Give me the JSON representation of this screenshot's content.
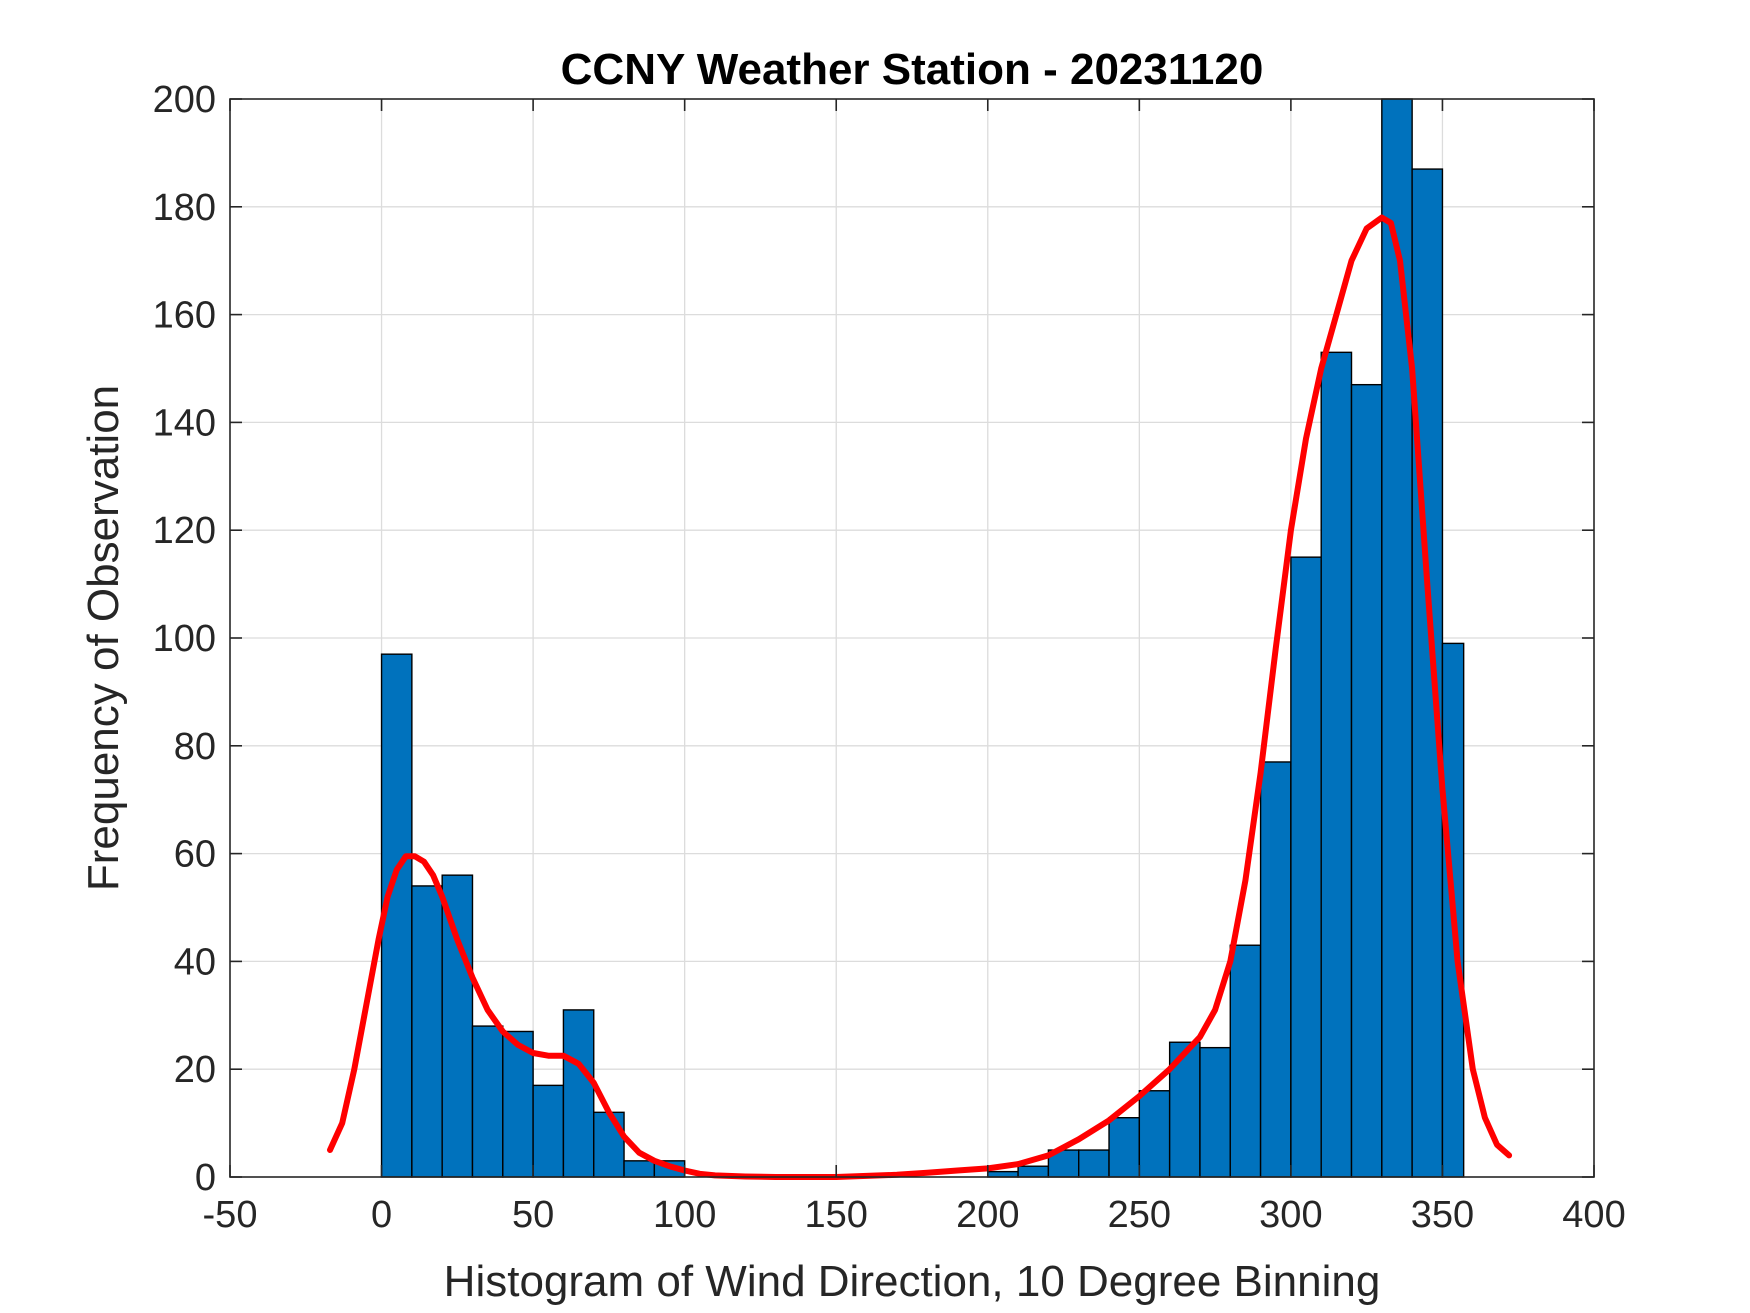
{
  "chart_data": {
    "type": "bar",
    "subtype": "histogram-with-density-curve",
    "title": "CCNY Weather Station - 20231120",
    "xlabel": "Histogram of Wind Direction, 10 Degree Binning",
    "ylabel": "Frequency of Observation",
    "xlim": [
      -50,
      400
    ],
    "ylim": [
      0,
      200
    ],
    "xticks": [
      -50,
      0,
      50,
      100,
      150,
      200,
      250,
      300,
      350,
      400
    ],
    "xtick_labels": [
      "-50",
      "0",
      "50",
      "100",
      "150",
      "200",
      "250",
      "300",
      "350",
      "400"
    ],
    "yticks": [
      0,
      20,
      40,
      60,
      80,
      100,
      120,
      140,
      160,
      180,
      200
    ],
    "ytick_labels": [
      "0",
      "20",
      "40",
      "60",
      "80",
      "100",
      "120",
      "140",
      "160",
      "180",
      "200"
    ],
    "grid": true,
    "bin_edges": [
      0,
      10,
      20,
      30,
      40,
      50,
      60,
      70,
      80,
      90,
      100,
      110,
      120,
      130,
      140,
      150,
      160,
      170,
      180,
      190,
      200,
      210,
      220,
      230,
      240,
      250,
      260,
      270,
      280,
      290,
      300,
      310,
      320,
      330,
      340,
      350,
      357
    ],
    "counts": [
      97,
      54,
      56,
      28,
      27,
      17,
      31,
      12,
      3,
      3,
      0,
      0,
      0,
      0,
      0,
      0,
      0,
      0,
      0,
      0,
      1,
      2,
      5,
      5,
      11,
      16,
      25,
      24,
      43,
      77,
      115,
      153,
      147,
      200,
      187,
      99
    ],
    "bar_color": "#0072BD",
    "curve": {
      "color": "#FF0000",
      "x": [
        -17,
        -13,
        -9,
        -5,
        -1,
        2,
        5,
        8,
        11,
        14,
        17,
        20,
        25,
        30,
        35,
        40,
        45,
        50,
        55,
        60,
        65,
        70,
        75,
        80,
        85,
        90,
        95,
        100,
        105,
        110,
        120,
        130,
        140,
        150,
        160,
        170,
        180,
        190,
        200,
        210,
        220,
        230,
        240,
        250,
        260,
        270,
        275,
        280,
        285,
        290,
        295,
        300,
        305,
        310,
        315,
        320,
        325,
        330,
        333,
        336,
        340,
        345,
        350,
        355,
        360,
        364,
        368,
        372
      ],
      "y": [
        5,
        10,
        20,
        32,
        44,
        52,
        57,
        59.5,
        59.5,
        58.5,
        56,
        52,
        44,
        37,
        31,
        27,
        24.5,
        23,
        22.5,
        22.5,
        21,
        17.5,
        12,
        7.5,
        4.5,
        3,
        2,
        1.2,
        0.6,
        0.3,
        0.1,
        0,
        0,
        0,
        0.2,
        0.4,
        0.8,
        1.2,
        1.6,
        2.4,
        4,
        7,
        10.5,
        15,
        20,
        26,
        31,
        40,
        55,
        75,
        98,
        120,
        137,
        150,
        160,
        170,
        176,
        178,
        177,
        170,
        150,
        110,
        72,
        40,
        20,
        11,
        6,
        4
      ]
    }
  }
}
